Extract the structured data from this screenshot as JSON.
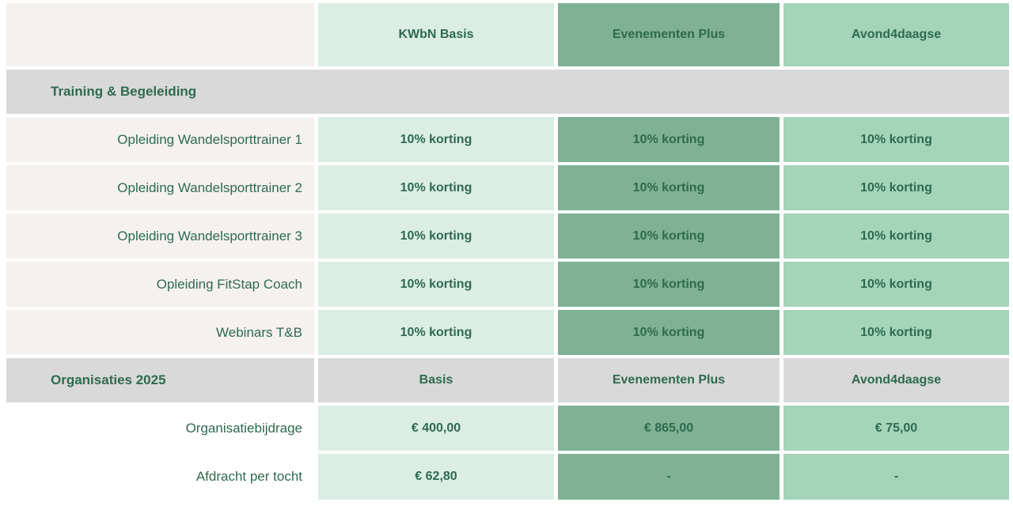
{
  "colors": {
    "page_bg": "#ffffff",
    "label_bg": "#f5f1ef",
    "basis_bg": "#dbeee3",
    "plus_bg": "#7fb294",
    "avond_bg": "#a4d4b9",
    "section_bg": "#d9d9d9",
    "text": "#2e6a50"
  },
  "header": {
    "basis": "KWbN Basis",
    "plus": "Evenementen Plus",
    "avond": "Avond4daagse"
  },
  "training": {
    "title": "Training & Begeleiding",
    "rows": [
      {
        "label": "Opleiding Wandelsporttrainer 1",
        "basis": "10% korting",
        "plus": "10% korting",
        "avond": "10% korting"
      },
      {
        "label": "Opleiding Wandelsporttrainer 2",
        "basis": "10% korting",
        "plus": "10% korting",
        "avond": "10% korting"
      },
      {
        "label": "Opleiding Wandelsporttrainer 3",
        "basis": "10% korting",
        "plus": "10% korting",
        "avond": "10% korting"
      },
      {
        "label": "Opleiding FitStap Coach",
        "basis": "10% korting",
        "plus": "10% korting",
        "avond": "10% korting"
      },
      {
        "label": "Webinars T&B",
        "basis": "10% korting",
        "plus": "10% korting",
        "avond": "10% korting"
      }
    ]
  },
  "organisaties": {
    "title": "Organisaties 2025",
    "col_basis": "Basis",
    "col_plus": "Evenementen Plus",
    "col_avond": "Avond4daagse",
    "rows": [
      {
        "label": "Organisatiebijdrage",
        "basis": "€ 400,00",
        "plus": "€ 865,00",
        "avond": "€ 75,00"
      },
      {
        "label": "Afdracht per tocht",
        "basis": "€ 62,80",
        "plus": "-",
        "avond": "-"
      }
    ]
  }
}
